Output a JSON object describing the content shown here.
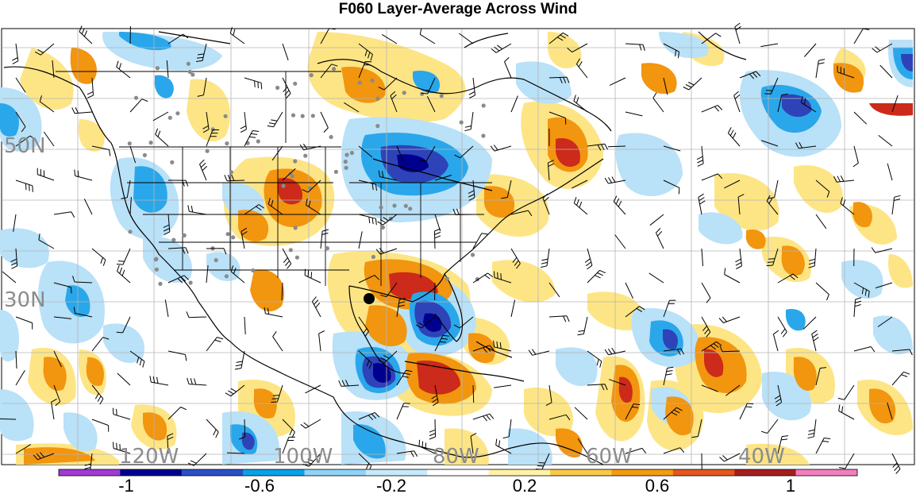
{
  "title": "F060 Layer-Average Across Wind",
  "lat_labels": [
    "50N",
    "30N"
  ],
  "lon_labels": [
    "120W",
    "100W",
    "80W",
    "60W",
    "40W"
  ],
  "colorbar": {
    "labels": [
      "-1",
      "-0.6",
      "-0.2",
      "0.2",
      "0.6",
      "1"
    ],
    "colors": [
      "#a13bd2",
      "#000090",
      "#2b4fc7",
      "#0aa2e6",
      "#8fd3f5",
      "#c7e9fb",
      "#ffffff",
      "#fff2a8",
      "#f8c84a",
      "#f49b12",
      "#e4571e",
      "#a51e1e",
      "#f27fbf"
    ]
  },
  "palette": {
    "strong_pos": "#cc2a1a",
    "pos": "#f2950f",
    "weak_pos": "#fde585",
    "weak_neg": "#b9e1f8",
    "neg": "#2aa7ea",
    "strong_neg": "#2e43b8",
    "very_neg": "#00008f",
    "grid": "#b4b4b4",
    "coast": "#000000",
    "station": "#8a8a8a"
  }
}
